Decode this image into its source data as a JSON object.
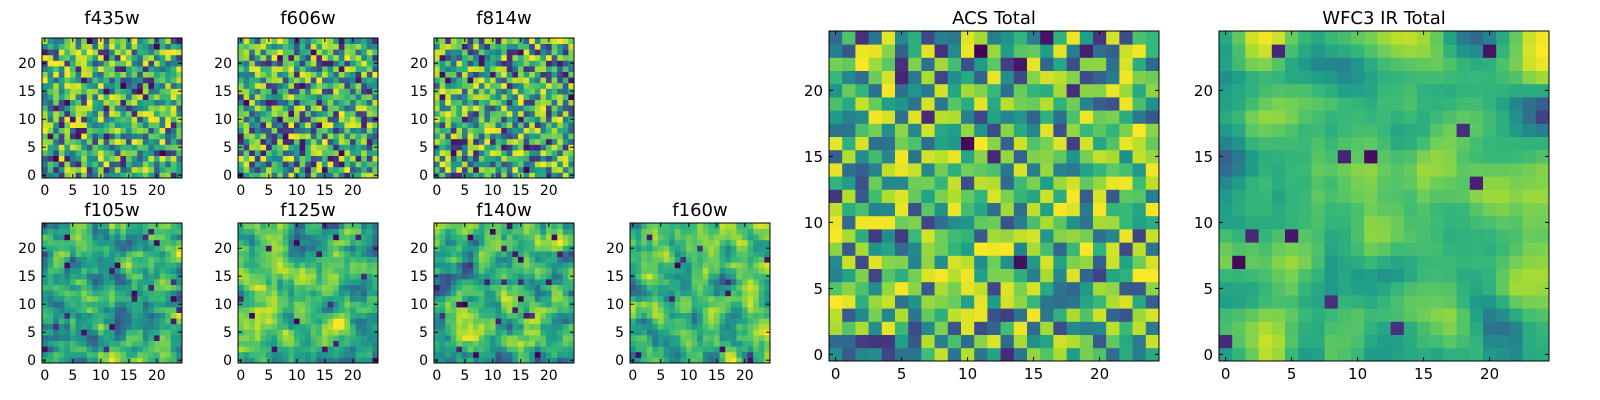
{
  "chart_data": [
    {
      "id": "f435w",
      "type": "heatmap",
      "title": "f435w",
      "size": 25,
      "seed": 11,
      "smooth": 0,
      "bias": 0.0,
      "xticks": [
        0,
        5,
        10,
        15,
        20
      ],
      "yticks": [
        0,
        5,
        10,
        15,
        20
      ],
      "xlim": [
        -0.5,
        24.5
      ],
      "ylim": [
        -0.5,
        24.5
      ],
      "colormap": "viridis",
      "values": "25x25 pixel noise image, normalized 0-1"
    },
    {
      "id": "f606w",
      "type": "heatmap",
      "title": "f606w",
      "size": 25,
      "seed": 23,
      "smooth": 0,
      "bias": 0.0,
      "xticks": [
        0,
        5,
        10,
        15,
        20
      ],
      "yticks": [
        0,
        5,
        10,
        15,
        20
      ],
      "xlim": [
        -0.5,
        24.5
      ],
      "ylim": [
        -0.5,
        24.5
      ],
      "colormap": "viridis",
      "values": "25x25 pixel noise image, normalized 0-1"
    },
    {
      "id": "f814w",
      "type": "heatmap",
      "title": "f814w",
      "size": 25,
      "seed": 37,
      "smooth": 0,
      "bias": 0.0,
      "xticks": [
        0,
        5,
        10,
        15,
        20
      ],
      "yticks": [
        0,
        5,
        10,
        15,
        20
      ],
      "xlim": [
        -0.5,
        24.5
      ],
      "ylim": [
        -0.5,
        24.5
      ],
      "colormap": "viridis",
      "values": "25x25 pixel noise image, normalized 0-1"
    },
    {
      "id": "f105w",
      "type": "heatmap",
      "title": "f105w",
      "size": 25,
      "seed": 41,
      "smooth": 1,
      "bias": 0.05,
      "xticks": [
        0,
        5,
        10,
        15,
        20
      ],
      "yticks": [
        0,
        5,
        10,
        15,
        20
      ],
      "xlim": [
        -0.5,
        24.5
      ],
      "ylim": [
        -0.5,
        24.5
      ],
      "colormap": "viridis",
      "values": "25x25 correlated noise image, normalized 0-1"
    },
    {
      "id": "f125w",
      "type": "heatmap",
      "title": "f125w",
      "size": 25,
      "seed": 53,
      "smooth": 1,
      "bias": 0.05,
      "xticks": [
        0,
        5,
        10,
        15,
        20
      ],
      "yticks": [
        0,
        5,
        10,
        15,
        20
      ],
      "xlim": [
        -0.5,
        24.5
      ],
      "ylim": [
        -0.5,
        24.5
      ],
      "colormap": "viridis",
      "values": "25x25 correlated noise image, normalized 0-1"
    },
    {
      "id": "f140w",
      "type": "heatmap",
      "title": "f140w",
      "size": 25,
      "seed": 67,
      "smooth": 1,
      "bias": 0.0,
      "xticks": [
        0,
        5,
        10,
        15,
        20
      ],
      "yticks": [
        0,
        5,
        10,
        15,
        20
      ],
      "xlim": [
        -0.5,
        24.5
      ],
      "ylim": [
        -0.5,
        24.5
      ],
      "colormap": "viridis",
      "values": "25x25 correlated noise image, normalized 0-1"
    },
    {
      "id": "f160w",
      "type": "heatmap",
      "title": "f160w",
      "size": 25,
      "seed": 79,
      "smooth": 1,
      "bias": 0.05,
      "xticks": [
        0,
        5,
        10,
        15,
        20
      ],
      "yticks": [
        0,
        5,
        10,
        15,
        20
      ],
      "xlim": [
        -0.5,
        24.5
      ],
      "ylim": [
        -0.5,
        24.5
      ],
      "colormap": "viridis",
      "values": "25x25 correlated noise image, normalized 0-1"
    },
    {
      "id": "acs-total",
      "type": "heatmap",
      "title": "ACS Total",
      "size": 25,
      "seed": 97,
      "smooth": 0,
      "bias": 0.12,
      "xticks": [
        0,
        5,
        10,
        15,
        20
      ],
      "yticks": [
        0,
        5,
        10,
        15,
        20
      ],
      "xlim": [
        -0.5,
        24.5
      ],
      "ylim": [
        -0.5,
        24.5
      ],
      "colormap": "viridis",
      "values": "25x25 summed ACS image, normalized 0-1"
    },
    {
      "id": "wfc3-ir-total",
      "type": "heatmap",
      "title": "WFC3 IR Total",
      "size": 25,
      "seed": 113,
      "smooth": 2,
      "bias": 0.2,
      "xticks": [
        0,
        5,
        10,
        15,
        20
      ],
      "yticks": [
        0,
        5,
        10,
        15,
        20
      ],
      "xlim": [
        -0.5,
        24.5
      ],
      "ylim": [
        -0.5,
        24.5
      ],
      "colormap": "viridis",
      "values": "25x25 summed WFC3 IR image, normalized 0-1"
    }
  ]
}
